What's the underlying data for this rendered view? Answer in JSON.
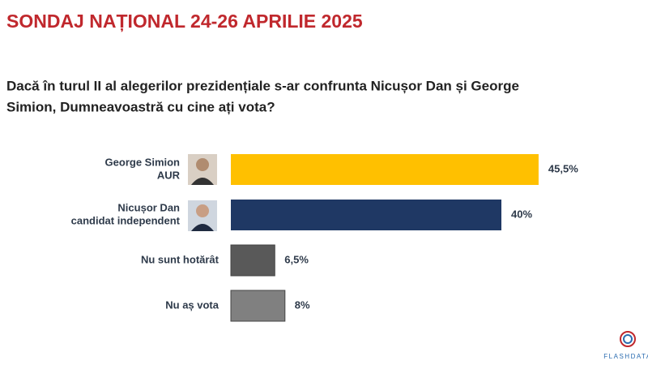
{
  "chart_data": {
    "type": "bar",
    "title": "SONDAJ NAȚIONAL 24-26 APRILIE 2025",
    "subtitle": [
      "Dacă în turul II al alegerilor prezidențiale s-ar confrunta Nicușor Dan și George",
      "Simion, Dumneavoastră cu cine ați vota?"
    ],
    "categories": [
      [
        "George Simion",
        "AUR"
      ],
      [
        "Nicușor Dan",
        "candidat independent"
      ],
      [
        "Nu sunt hotărât"
      ],
      [
        "Nu aș vota"
      ]
    ],
    "values": [
      45.5,
      40,
      6.5,
      8
    ],
    "value_labels": [
      "45,5%",
      "40%",
      "6,5%",
      "8%"
    ],
    "colors": [
      "#FFC000",
      "#1F3864",
      "#595959",
      "#808080"
    ],
    "logo": "FLASHDATA"
  }
}
